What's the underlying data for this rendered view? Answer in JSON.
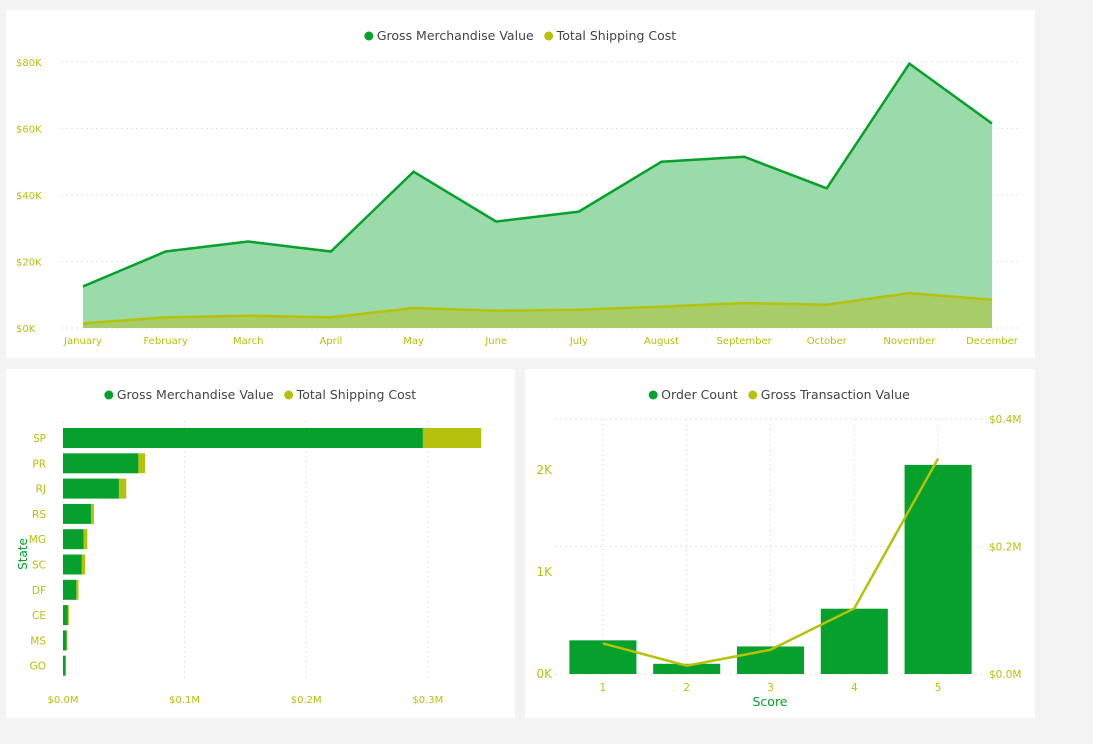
{
  "colors": {
    "gmv": "#05a12c",
    "shipping": "#b5c10a",
    "gmv_fill": "#9bdaa9",
    "shipping_fill": "#a8cc68",
    "axis_text": "#b5c10a",
    "title_text": "#05a12c"
  },
  "chart_data": [
    {
      "type": "area",
      "title": "",
      "legend": {
        "position": "top-center",
        "items": [
          "Gross Merchandise Value",
          "Total Shipping Cost"
        ]
      },
      "categories": [
        "January",
        "February",
        "March",
        "April",
        "May",
        "June",
        "July",
        "August",
        "September",
        "October",
        "November",
        "December"
      ],
      "series": [
        {
          "name": "Gross Merchandise Value",
          "values": [
            12500,
            23000,
            26000,
            23000,
            47000,
            32000,
            35000,
            50000,
            51500,
            42000,
            79500,
            61500
          ]
        },
        {
          "name": "Total Shipping Cost",
          "values": [
            1400,
            3200,
            3700,
            3200,
            6000,
            5200,
            5500,
            6400,
            7500,
            7000,
            10500,
            8500
          ]
        }
      ],
      "y_ticks": [
        "$0K",
        "$20K",
        "$40K",
        "$60K",
        "$80K"
      ],
      "y_tick_values": [
        0,
        20000,
        40000,
        60000,
        80000
      ],
      "ylim": [
        0,
        80000
      ],
      "grid": true
    },
    {
      "type": "bar",
      "orientation": "horizontal",
      "stacked": true,
      "legend": {
        "position": "top-center",
        "items": [
          "Gross Merchandise Value",
          "Total Shipping Cost"
        ]
      },
      "ylabel": "State",
      "categories": [
        "SP",
        "PR",
        "RJ",
        "RS",
        "MG",
        "SC",
        "DF",
        "CE",
        "MS",
        "GO"
      ],
      "series": [
        {
          "name": "Gross Merchandise Value",
          "values": [
            296000,
            62000,
            46000,
            23000,
            17000,
            15500,
            11000,
            4000,
            3000,
            2000
          ]
        },
        {
          "name": "Total Shipping Cost",
          "values": [
            48000,
            5500,
            6000,
            2500,
            3000,
            2800,
            1700,
            800,
            600,
            500
          ]
        }
      ],
      "x_ticks": [
        "$0.0M",
        "$0.1M",
        "$0.2M",
        "$0.3M"
      ],
      "x_tick_values": [
        0,
        100000,
        200000,
        300000
      ],
      "xlim": [
        0,
        345000
      ],
      "grid": true
    },
    {
      "type": "bar",
      "combo": "line",
      "legend": {
        "position": "top-center",
        "items": [
          "Order Count",
          "Gross Transaction Value"
        ]
      },
      "xlabel": "Score",
      "categories": [
        "1",
        "2",
        "3",
        "4",
        "5"
      ],
      "series": [
        {
          "name": "Order Count",
          "type": "bar",
          "axis": "left",
          "values": [
            330,
            100,
            270,
            640,
            2050
          ]
        },
        {
          "name": "Gross Transaction Value",
          "type": "line",
          "axis": "right",
          "values": [
            48000,
            13000,
            38000,
            103000,
            338000
          ]
        }
      ],
      "y_left_ticks": [
        "0K",
        "1K",
        "2K"
      ],
      "y_left_tick_values": [
        0,
        1000,
        2000
      ],
      "y_left_lim": [
        0,
        2500
      ],
      "y_right_ticks": [
        "$0.0M",
        "$0.2M",
        "$0.4M"
      ],
      "y_right_tick_values": [
        0,
        200000,
        400000
      ],
      "y_right_lim": [
        0,
        400000
      ],
      "grid": true
    }
  ]
}
